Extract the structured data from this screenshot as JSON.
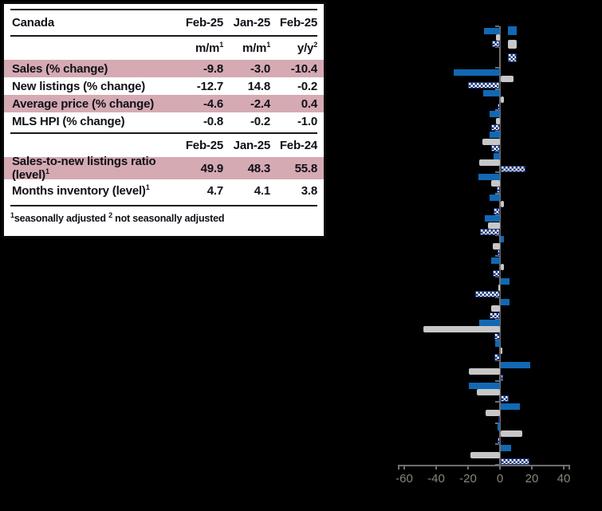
{
  "page": {
    "background": "#000000"
  },
  "table": {
    "title_row": {
      "label": "Canada",
      "cols": [
        "Feb-25",
        "Jan-25",
        "Feb-25"
      ]
    },
    "unit_row": [
      {
        "base": "m/m",
        "sup": "1"
      },
      {
        "base": "m/m",
        "sup": "1"
      },
      {
        "base": "y/y",
        "sup": "2"
      }
    ],
    "rows1": [
      {
        "label": "Sales (% change)",
        "sup": "",
        "values": [
          "-9.8",
          "-3.0",
          "-10.4"
        ],
        "highlight": true
      },
      {
        "label": "New listings (% change)",
        "sup": "",
        "values": [
          "-12.7",
          "14.8",
          "-0.2"
        ],
        "highlight": false
      },
      {
        "label": "Average price (% change)",
        "sup": "",
        "values": [
          "-4.6",
          "-2.4",
          "0.4"
        ],
        "highlight": true
      },
      {
        "label": "MLS HPI (% change)",
        "sup": "",
        "values": [
          "-0.8",
          "-0.2",
          "-1.0"
        ],
        "highlight": false
      }
    ],
    "header2": [
      "Feb-25",
      "Jan-25",
      "Feb-24"
    ],
    "rows2": [
      {
        "label": "Sales-to-new listings ratio (level)",
        "sup": "1",
        "values": [
          "49.9",
          "48.3",
          "55.8"
        ],
        "highlight": true
      },
      {
        "label": "Months inventory (level)",
        "sup": "1",
        "values": [
          "4.7",
          "4.1",
          "3.8"
        ],
        "highlight": false
      }
    ],
    "footnote": [
      {
        "sup": "1",
        "text": "seasonally adjusted"
      },
      {
        "sup": "2",
        "text": "not seasonally adjusted"
      }
    ],
    "highlight_color": "#d5aab3"
  },
  "chart_data": {
    "type": "bar",
    "orientation": "horizontal",
    "x_ticks": [
      -60,
      -40,
      -20,
      0,
      20,
      40
    ],
    "x_range": [
      -64,
      44
    ],
    "axis_color": "#6e6e6e",
    "tick_label_color": "#8b8679",
    "series": [
      {
        "name": "series-1-solid-blue",
        "color": "#1268b3"
      },
      {
        "name": "series-2-gray",
        "color": "#c7c7c7"
      },
      {
        "name": "series-3-checkered-blue",
        "color": "#1c3576"
      }
    ],
    "groups": [
      {
        "slot": 0,
        "values": [
          -10,
          -2.5,
          -5
        ]
      },
      {
        "slot": 2,
        "values": [
          -29,
          8,
          -20
        ]
      },
      {
        "slot": 3,
        "values": [
          -10.5,
          2,
          -1.5
        ]
      },
      {
        "slot": 4,
        "values": [
          -6.5,
          -2.5,
          -5.5
        ]
      },
      {
        "slot": 5,
        "values": [
          -6.5,
          -11,
          -5.5
        ]
      },
      {
        "slot": 6,
        "values": [
          -4,
          -13,
          15.5
        ]
      },
      {
        "slot": 7,
        "values": [
          -13.5,
          -5.5,
          -2
        ]
      },
      {
        "slot": 8,
        "values": [
          -6.5,
          2,
          -4
        ]
      },
      {
        "slot": 9,
        "values": [
          -9.5,
          -7.5,
          -12.5
        ]
      },
      {
        "slot": 10,
        "values": [
          2,
          -4.5,
          -1.5
        ]
      },
      {
        "slot": 11,
        "values": [
          -5.5,
          2,
          -4.5
        ]
      },
      {
        "slot": 12,
        "values": [
          5.5,
          -1,
          -15.5
        ]
      },
      {
        "slot": 13,
        "values": [
          5.5,
          -5.5,
          -6.5
        ]
      },
      {
        "slot": 14,
        "values": [
          -13,
          -48,
          -3.5
        ]
      },
      {
        "slot": 15,
        "values": [
          -3,
          0.5,
          -3.5
        ]
      },
      {
        "slot": 16,
        "values": [
          18.5,
          -19.5,
          1.5
        ]
      },
      {
        "slot": 17,
        "values": [
          -19.5,
          -14.5,
          5
        ]
      },
      {
        "slot": 18,
        "values": [
          12,
          -9,
          -0.5
        ]
      },
      {
        "slot": 19,
        "values": [
          -1.5,
          13.5,
          -1.5
        ]
      },
      {
        "slot": 20,
        "values": [
          6.5,
          -18.5,
          18
        ]
      }
    ]
  }
}
